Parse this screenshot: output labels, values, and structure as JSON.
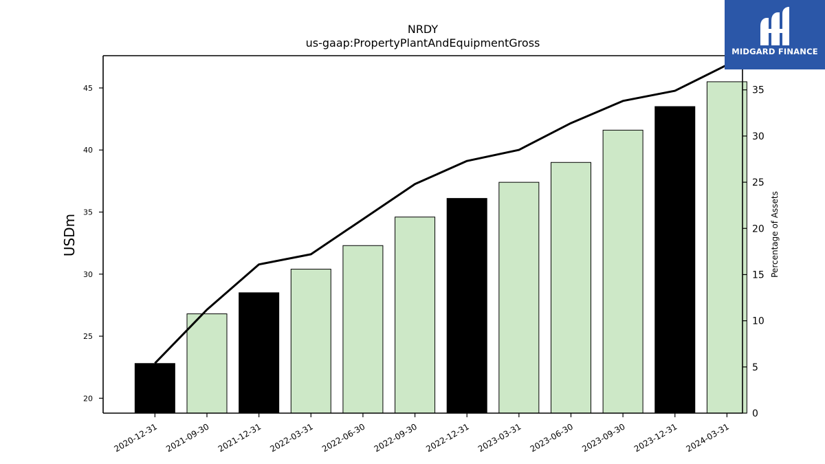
{
  "brand": {
    "name": "MIDGARD FINANCE",
    "bg_color": "#2b57a8",
    "icon": "midgard-logo-icon"
  },
  "chart_data": {
    "type": "bar",
    "title": "NRDY",
    "subtitle": "us-gaap:PropertyPlantAndEquipmentGross",
    "ylabel": "USDm",
    "y2label": "Percentage of Assets",
    "categories": [
      "2020-12-31",
      "2021-09-30",
      "2021-12-31",
      "2022-03-31",
      "2022-06-30",
      "2022-09-30",
      "2022-12-31",
      "2023-03-31",
      "2023-06-30",
      "2023-09-30",
      "2023-12-31",
      "2024-03-31"
    ],
    "series": [
      {
        "type": "bar",
        "axis": "left",
        "values": [
          22.8,
          26.8,
          28.5,
          30.4,
          32.3,
          34.6,
          36.1,
          37.4,
          39.0,
          41.6,
          43.5,
          45.5
        ],
        "colors": [
          "#000000",
          "#cde8c7",
          "#000000",
          "#cde8c7",
          "#cde8c7",
          "#cde8c7",
          "#000000",
          "#cde8c7",
          "#cde8c7",
          "#cde8c7",
          "#000000",
          "#cde8c7"
        ]
      },
      {
        "type": "line",
        "axis": "right",
        "color": "#000000",
        "values": [
          5.4,
          11.2,
          16.1,
          17.2,
          21.0,
          24.8,
          27.3,
          28.5,
          31.4,
          33.8,
          34.9,
          37.7
        ]
      }
    ],
    "ylim": [
      18.8,
      47.6
    ],
    "y2lim": [
      0,
      38.7
    ],
    "yticks": [
      20,
      25,
      30,
      35,
      40,
      45
    ],
    "y2ticks": [
      0,
      5,
      10,
      15,
      20,
      25,
      30,
      35
    ],
    "grid": false,
    "legend": "none"
  }
}
